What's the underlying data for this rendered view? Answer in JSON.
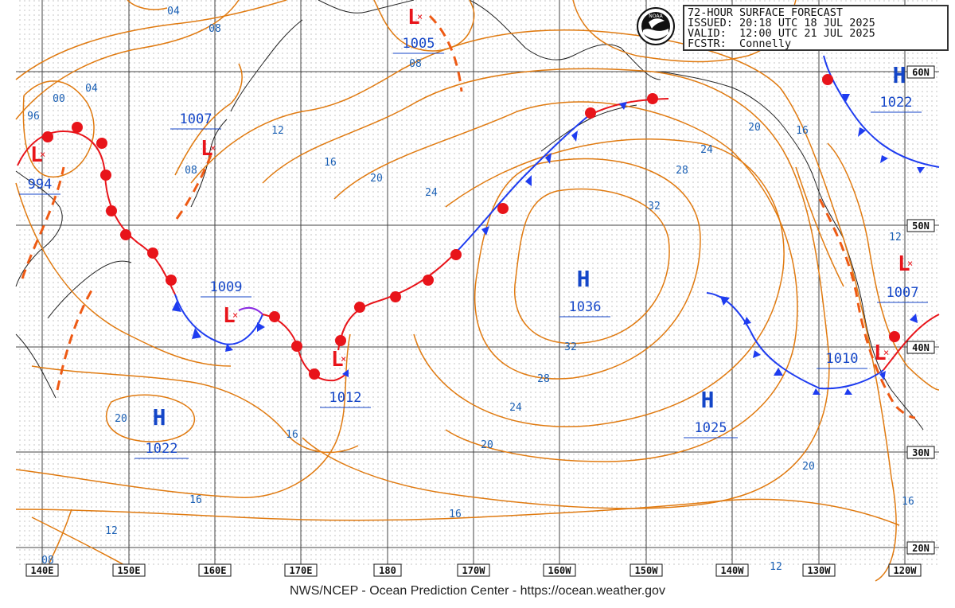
{
  "header": {
    "title": "72-HOUR SURFACE FORECAST",
    "issued_label": "ISSUED:",
    "issued": "20:18 UTC 18 JUL 2025",
    "valid_label": "VALID:",
    "valid": "12:00 UTC 21 JUL 2025",
    "forecaster_label": "FCSTR:",
    "forecaster": "Connelly",
    "logo_text": "NOAA"
  },
  "footer": "NWS/NCEP - Ocean Prediction Center - https://ocean.weather.gov",
  "longitude_labels": [
    "140E",
    "150E",
    "160E",
    "170E",
    "180",
    "170W",
    "160W",
    "150W",
    "140W",
    "130W",
    "120W"
  ],
  "latitude_labels": [
    "60N",
    "50N",
    "40N",
    "30N",
    "20N"
  ],
  "pressure_centers": [
    {
      "type": "L",
      "value": "994"
    },
    {
      "type": "L",
      "value": "1007"
    },
    {
      "type": "L",
      "value": "1005"
    },
    {
      "type": "L",
      "value": "1009"
    },
    {
      "type": "L",
      "value": "1012"
    },
    {
      "type": "H",
      "value": "1036"
    },
    {
      "type": "H",
      "value": "1022"
    },
    {
      "type": "H",
      "value": "1025"
    },
    {
      "type": "H",
      "value": "1022"
    },
    {
      "type": "L",
      "value": "1007"
    },
    {
      "type": "L",
      "value": "1010"
    }
  ],
  "isobar_labels": [
    "04",
    "08",
    "04",
    "00",
    "96",
    "08",
    "08",
    "12",
    "16",
    "20",
    "24",
    "28",
    "32",
    "32",
    "28",
    "24",
    "20",
    "16",
    "16",
    "12",
    "08",
    "20",
    "16",
    "24",
    "20",
    "16",
    "12",
    "20",
    "16",
    "12"
  ],
  "colors": {
    "isobar": "#e07a10",
    "isobar_label": "#1a5fb4",
    "warm_front": "#e8141a",
    "cold_front": "#1e3cf0",
    "trough": "#ee5a14",
    "grid": "#333333",
    "land": "#222222",
    "symbol_text": "#1446c8"
  }
}
